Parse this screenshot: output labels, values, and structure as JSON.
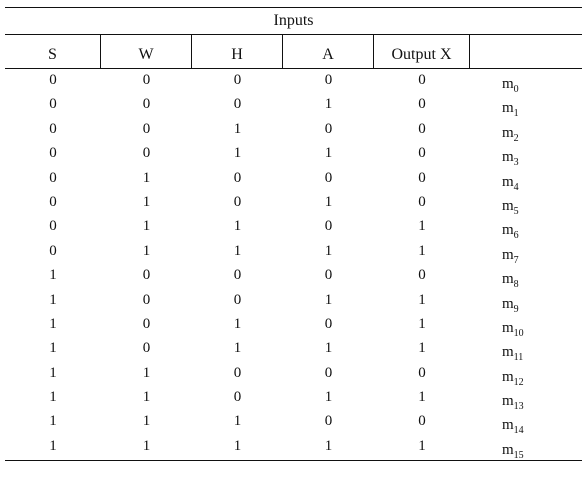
{
  "table": {
    "group_header": "Inputs",
    "columns": [
      "S",
      "W",
      "H",
      "A",
      "Output X",
      ""
    ],
    "rows": [
      {
        "S": "0",
        "W": "0",
        "H": "0",
        "A": "0",
        "X": "0",
        "m": "m",
        "sub": "0"
      },
      {
        "S": "0",
        "W": "0",
        "H": "0",
        "A": "1",
        "X": "0",
        "m": "m",
        "sub": "1"
      },
      {
        "S": "0",
        "W": "0",
        "H": "1",
        "A": "0",
        "X": "0",
        "m": "m",
        "sub": "2"
      },
      {
        "S": "0",
        "W": "0",
        "H": "1",
        "A": "1",
        "X": "0",
        "m": "m",
        "sub": "3"
      },
      {
        "S": "0",
        "W": "1",
        "H": "0",
        "A": "0",
        "X": "0",
        "m": "m",
        "sub": "4"
      },
      {
        "S": "0",
        "W": "1",
        "H": "0",
        "A": "1",
        "X": "0",
        "m": "m",
        "sub": "5"
      },
      {
        "S": "0",
        "W": "1",
        "H": "1",
        "A": "0",
        "X": "1",
        "m": "m",
        "sub": "6"
      },
      {
        "S": "0",
        "W": "1",
        "H": "1",
        "A": "1",
        "X": "1",
        "m": "m",
        "sub": "7"
      },
      {
        "S": "1",
        "W": "0",
        "H": "0",
        "A": "0",
        "X": "0",
        "m": "m",
        "sub": "8"
      },
      {
        "S": "1",
        "W": "0",
        "H": "0",
        "A": "1",
        "X": "1",
        "m": "m",
        "sub": "9"
      },
      {
        "S": "1",
        "W": "0",
        "H": "1",
        "A": "0",
        "X": "1",
        "m": "m",
        "sub": "10"
      },
      {
        "S": "1",
        "W": "0",
        "H": "1",
        "A": "1",
        "X": "1",
        "m": "m",
        "sub": "11"
      },
      {
        "S": "1",
        "W": "1",
        "H": "0",
        "A": "0",
        "X": "0",
        "m": "m",
        "sub": "12"
      },
      {
        "S": "1",
        "W": "1",
        "H": "0",
        "A": "1",
        "X": "1",
        "m": "m",
        "sub": "13"
      },
      {
        "S": "1",
        "W": "1",
        "H": "1",
        "A": "0",
        "X": "0",
        "m": "m",
        "sub": "14"
      },
      {
        "S": "1",
        "W": "1",
        "H": "1",
        "A": "1",
        "X": "1",
        "m": "m",
        "sub": "15"
      }
    ]
  }
}
